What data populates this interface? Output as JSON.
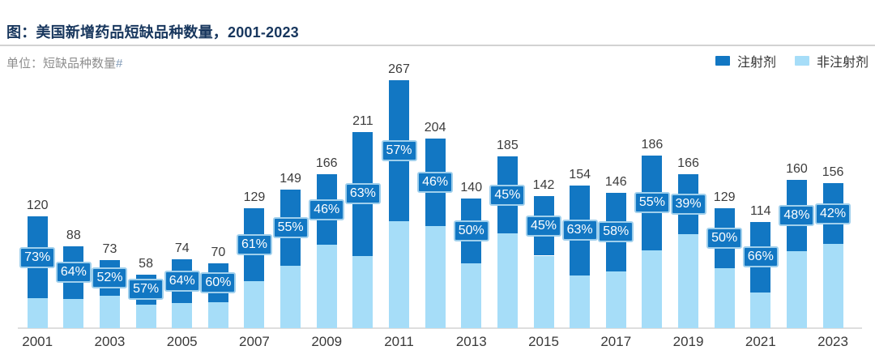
{
  "header": {
    "title": "图：美国新增药品短缺品种数量，2001-2023",
    "unit_label": "单位：短缺品种数量",
    "unit_suffix": "#"
  },
  "legend": {
    "series1": "注射剂",
    "series2": "非注射剂"
  },
  "colors": {
    "injectable_dark_blue": "#1277c3",
    "non_injectable_light_blue": "#a6ddf8",
    "title_navy": "#17365d",
    "badge_border_light_blue": "#9fcfec",
    "axis_gray": "#dedede"
  },
  "chart_data": {
    "type": "bar",
    "stacked": true,
    "title": "图：美国新增药品短缺品种数量，2001-2023",
    "ylabel": "短缺品种数量#",
    "categories": [
      2001,
      2002,
      2003,
      2004,
      2005,
      2006,
      2007,
      2008,
      2009,
      2010,
      2011,
      2012,
      2013,
      2014,
      2015,
      2016,
      2017,
      2018,
      2019,
      2020,
      2021,
      2022,
      2023
    ],
    "totals": [
      120,
      88,
      73,
      58,
      74,
      70,
      129,
      149,
      166,
      211,
      267,
      204,
      140,
      185,
      142,
      154,
      146,
      186,
      166,
      129,
      114,
      160,
      156
    ],
    "series": [
      {
        "name": "注射剂",
        "color": "#1277c3",
        "share_pct": [
          73,
          64,
          52,
          57,
          64,
          60,
          61,
          55,
          46,
          63,
          57,
          46,
          50,
          45,
          45,
          63,
          58,
          55,
          39,
          50,
          66,
          48,
          42
        ]
      },
      {
        "name": "非注射剂",
        "color": "#a6ddf8",
        "share_pct_is_complement": true
      }
    ],
    "value_labels": [
      "120",
      "88",
      "73",
      "58",
      "74",
      "70",
      "129",
      "149",
      "166",
      "211",
      "267",
      "204",
      "140",
      "185",
      "142",
      "154",
      "146",
      "186",
      "166",
      "129",
      "114",
      "160",
      "156"
    ],
    "pct_labels": [
      "73%",
      "64%",
      "52%",
      "57%",
      "64%",
      "60%",
      "61%",
      "55%",
      "46%",
      "63%",
      "57%",
      "46%",
      "50%",
      "45%",
      "45%",
      "63%",
      "58%",
      "55%",
      "39%",
      "50%",
      "66%",
      "48%",
      "42%"
    ],
    "x_tick_labels": [
      "2001",
      "2003",
      "2005",
      "2007",
      "2009",
      "2011",
      "2013",
      "2015",
      "2017",
      "2019",
      "2021",
      "2023"
    ],
    "ylim": [
      0,
      280
    ],
    "grid": false,
    "legend_position": "top-right"
  }
}
